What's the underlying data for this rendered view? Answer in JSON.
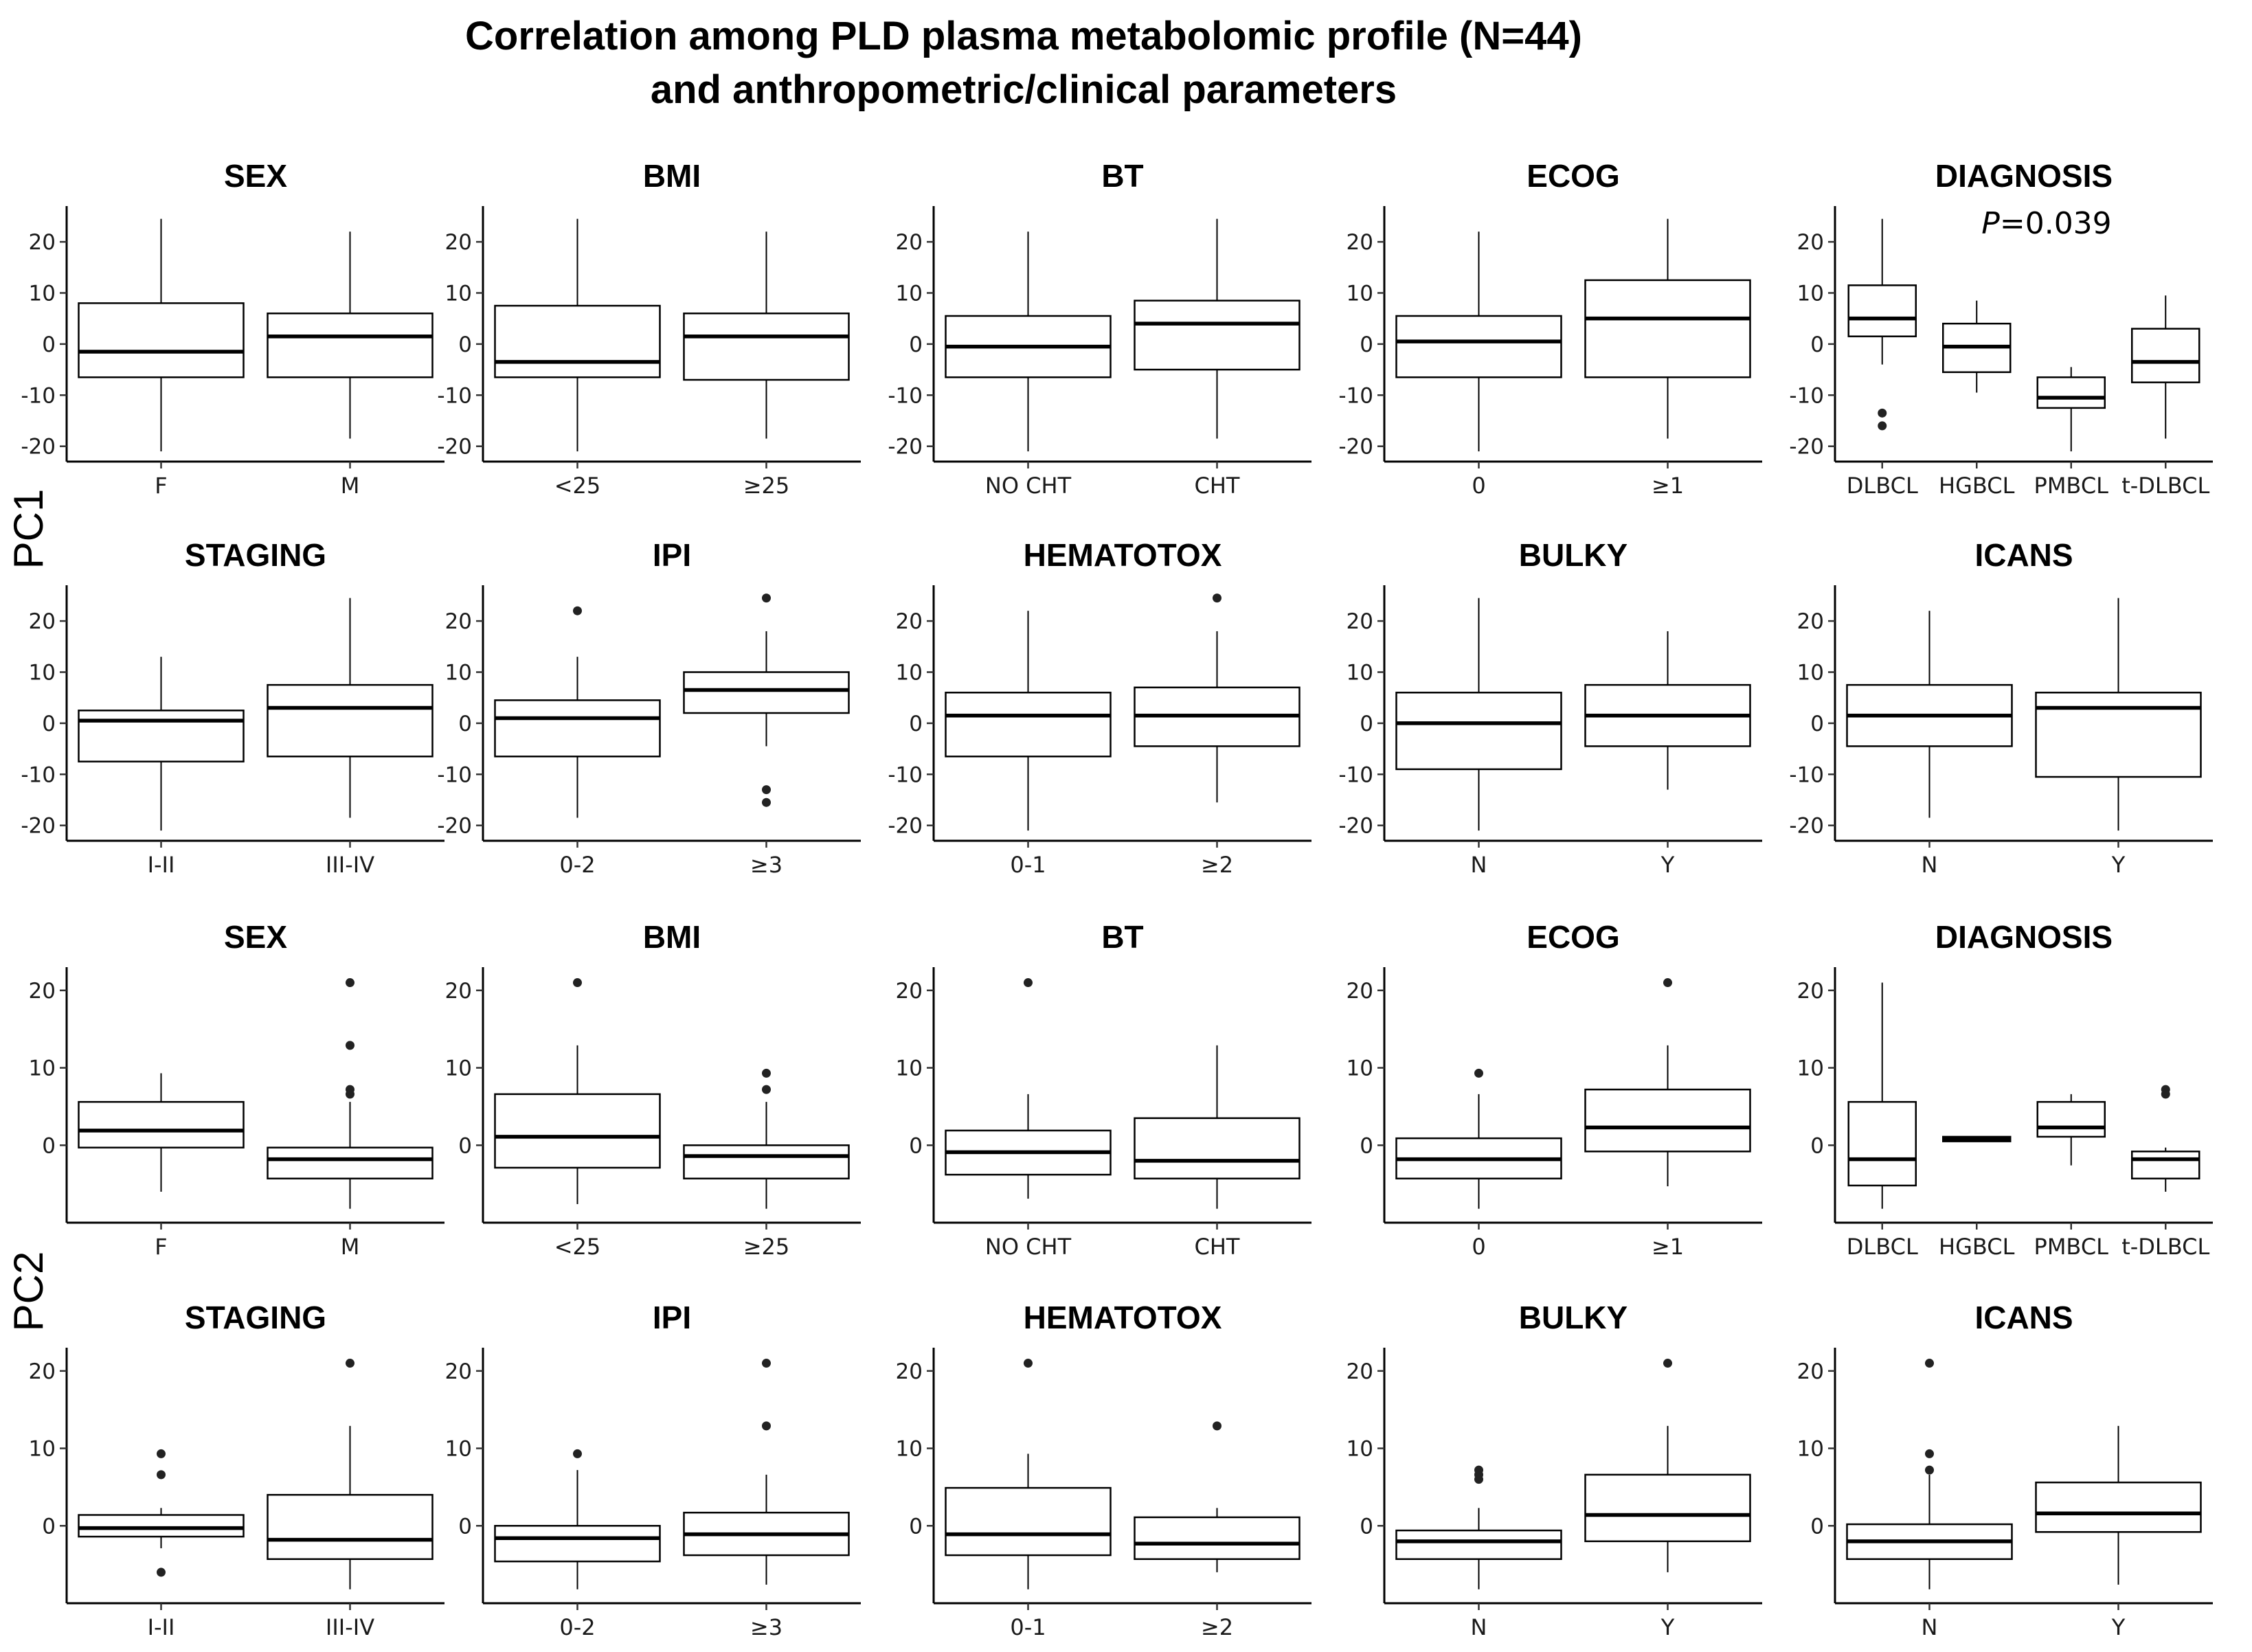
{
  "figure_title": {
    "line1": "Correlation among PLD plasma metabolomic profile (N=44)",
    "line2": "and anthropometric/clinical parameters"
  },
  "row_labels": [
    "PC1",
    "PC2"
  ],
  "chart_data": {
    "type": "boxplot",
    "title": "Correlation among PLD plasma metabolomic profile (N=44) and anthropometric/clinical parameters",
    "ylabels": [
      "PC1",
      "PC2"
    ],
    "ylim": {
      "PC1": [
        -23,
        27
      ],
      "PC2": [
        -10,
        23
      ]
    },
    "yticks": {
      "PC1": [
        -20,
        -10,
        0,
        10,
        20
      ],
      "PC2": [
        0,
        10,
        20
      ]
    },
    "panels": [
      {
        "id": "pc1-sex",
        "pc": "PC1",
        "title": "SEX",
        "categories": [
          "F",
          "M"
        ],
        "boxes": [
          {
            "q1": -6.5,
            "median": -1.5,
            "q3": 8,
            "whisker_low": -21,
            "whisker_high": 24.5,
            "outliers": []
          },
          {
            "q1": -6.5,
            "median": 1.5,
            "q3": 6,
            "whisker_low": -18.5,
            "whisker_high": 22,
            "outliers": []
          }
        ]
      },
      {
        "id": "pc1-bmi",
        "pc": "PC1",
        "title": "BMI",
        "categories": [
          "<25",
          "≥25"
        ],
        "boxes": [
          {
            "q1": -6.5,
            "median": -3.5,
            "q3": 7.5,
            "whisker_low": -21,
            "whisker_high": 24.5,
            "outliers": []
          },
          {
            "q1": -7,
            "median": 1.5,
            "q3": 6,
            "whisker_low": -18.5,
            "whisker_high": 22,
            "outliers": []
          }
        ]
      },
      {
        "id": "pc1-bt",
        "pc": "PC1",
        "title": "BT",
        "categories": [
          "NO CHT",
          "CHT"
        ],
        "boxes": [
          {
            "q1": -6.5,
            "median": -0.5,
            "q3": 5.5,
            "whisker_low": -21,
            "whisker_high": 22,
            "outliers": []
          },
          {
            "q1": -5,
            "median": 4,
            "q3": 8.5,
            "whisker_low": -18.5,
            "whisker_high": 24.5,
            "outliers": []
          }
        ]
      },
      {
        "id": "pc1-ecog",
        "pc": "PC1",
        "title": "ECOG",
        "categories": [
          "0",
          "≥1"
        ],
        "boxes": [
          {
            "q1": -6.5,
            "median": 0.5,
            "q3": 5.5,
            "whisker_low": -21,
            "whisker_high": 22,
            "outliers": []
          },
          {
            "q1": -6.5,
            "median": 5,
            "q3": 12.5,
            "whisker_low": -18.5,
            "whisker_high": 24.5,
            "outliers": []
          }
        ]
      },
      {
        "id": "pc1-diagnosis",
        "pc": "PC1",
        "title": "DIAGNOSIS",
        "annotation": "P=0.039",
        "categories": [
          "DLBCL",
          "HGBCL",
          "PMBCL",
          "t-DLBCL"
        ],
        "boxes": [
          {
            "q1": 1.5,
            "median": 5,
            "q3": 11.5,
            "whisker_low": -4,
            "whisker_high": 24.5,
            "outliers": [
              -13.5,
              -16
            ]
          },
          {
            "q1": -5.5,
            "median": -0.5,
            "q3": 4,
            "whisker_low": -9.5,
            "whisker_high": 8.5,
            "outliers": []
          },
          {
            "q1": -12.5,
            "median": -10.5,
            "q3": -6.5,
            "whisker_low": -21,
            "whisker_high": -4.5,
            "outliers": []
          },
          {
            "q1": -7.5,
            "median": -3.5,
            "q3": 3,
            "whisker_low": -18.5,
            "whisker_high": 9.5,
            "outliers": []
          }
        ]
      },
      {
        "id": "pc1-staging",
        "pc": "PC1",
        "title": "STAGING",
        "categories": [
          "I-II",
          "III-IV"
        ],
        "boxes": [
          {
            "q1": -7.5,
            "median": 0.5,
            "q3": 2.5,
            "whisker_low": -21,
            "whisker_high": 13,
            "outliers": []
          },
          {
            "q1": -6.5,
            "median": 3,
            "q3": 7.5,
            "whisker_low": -18.5,
            "whisker_high": 24.5,
            "outliers": []
          }
        ]
      },
      {
        "id": "pc1-ipi",
        "pc": "PC1",
        "title": "IPI",
        "categories": [
          "0-2",
          "≥3"
        ],
        "boxes": [
          {
            "q1": -6.5,
            "median": 1,
            "q3": 4.5,
            "whisker_low": -18.5,
            "whisker_high": 13,
            "outliers": [
              22
            ]
          },
          {
            "q1": 2,
            "median": 6.5,
            "q3": 10,
            "whisker_low": -4.5,
            "whisker_high": 18,
            "outliers": [
              24.5,
              -13,
              -15.5
            ]
          }
        ]
      },
      {
        "id": "pc1-hematotox",
        "pc": "PC1",
        "title": "HEMATOTOX",
        "categories": [
          "0-1",
          "≥2"
        ],
        "boxes": [
          {
            "q1": -6.5,
            "median": 1.5,
            "q3": 6,
            "whisker_low": -21,
            "whisker_high": 22,
            "outliers": []
          },
          {
            "q1": -4.5,
            "median": 1.5,
            "q3": 7,
            "whisker_low": -15.5,
            "whisker_high": 18,
            "outliers": [
              24.5
            ]
          }
        ]
      },
      {
        "id": "pc1-bulky",
        "pc": "PC1",
        "title": "BULKY",
        "categories": [
          "N",
          "Y"
        ],
        "boxes": [
          {
            "q1": -9,
            "median": 0,
            "q3": 6,
            "whisker_low": -21,
            "whisker_high": 24.5,
            "outliers": []
          },
          {
            "q1": -4.5,
            "median": 1.5,
            "q3": 7.5,
            "whisker_low": -13,
            "whisker_high": 18,
            "outliers": []
          }
        ]
      },
      {
        "id": "pc1-icans",
        "pc": "PC1",
        "title": "ICANS",
        "categories": [
          "N",
          "Y"
        ],
        "boxes": [
          {
            "q1": -4.5,
            "median": 1.5,
            "q3": 7.5,
            "whisker_low": -18.5,
            "whisker_high": 22,
            "outliers": []
          },
          {
            "q1": -10.5,
            "median": 3,
            "q3": 6,
            "whisker_low": -21,
            "whisker_high": 24.5,
            "outliers": []
          }
        ]
      },
      {
        "id": "pc2-sex",
        "pc": "PC2",
        "title": "SEX",
        "categories": [
          "F",
          "M"
        ],
        "boxes": [
          {
            "q1": -0.3,
            "median": 1.9,
            "q3": 5.6,
            "whisker_low": -6,
            "whisker_high": 9.3,
            "outliers": []
          },
          {
            "q1": -4.3,
            "median": -1.8,
            "q3": -0.3,
            "whisker_low": -8.2,
            "whisker_high": 5.6,
            "outliers": [
              21,
              12.9,
              7.2,
              6.6
            ]
          }
        ]
      },
      {
        "id": "pc2-bmi",
        "pc": "PC2",
        "title": "BMI",
        "categories": [
          "<25",
          "≥25"
        ],
        "boxes": [
          {
            "q1": -2.9,
            "median": 1.1,
            "q3": 6.6,
            "whisker_low": -7.6,
            "whisker_high": 12.9,
            "outliers": [
              21
            ]
          },
          {
            "q1": -4.3,
            "median": -1.4,
            "q3": 0,
            "whisker_low": -8.2,
            "whisker_high": 5.6,
            "outliers": [
              9.3,
              7.2
            ]
          }
        ]
      },
      {
        "id": "pc2-bt",
        "pc": "PC2",
        "title": "BT",
        "categories": [
          "NO CHT",
          "CHT"
        ],
        "boxes": [
          {
            "q1": -3.8,
            "median": -0.9,
            "q3": 1.9,
            "whisker_low": -6.9,
            "whisker_high": 6.6,
            "outliers": [
              21
            ]
          },
          {
            "q1": -4.3,
            "median": -2,
            "q3": 3.5,
            "whisker_low": -8.2,
            "whisker_high": 12.9,
            "outliers": []
          }
        ]
      },
      {
        "id": "pc2-ecog",
        "pc": "PC2",
        "title": "ECOG",
        "categories": [
          "0",
          "≥1"
        ],
        "boxes": [
          {
            "q1": -4.3,
            "median": -1.8,
            "q3": 0.9,
            "whisker_low": -8.2,
            "whisker_high": 6.6,
            "outliers": [
              9.3
            ]
          },
          {
            "q1": -0.8,
            "median": 2.3,
            "q3": 7.2,
            "whisker_low": -5.3,
            "whisker_high": 12.9,
            "outliers": [
              21
            ]
          }
        ]
      },
      {
        "id": "pc2-diagnosis",
        "pc": "PC2",
        "title": "DIAGNOSIS",
        "categories": [
          "DLBCL",
          "HGBCL",
          "PMBCL",
          "t-DLBCL"
        ],
        "boxes": [
          {
            "q1": -5.2,
            "median": -1.8,
            "q3": 5.6,
            "whisker_low": -8.2,
            "whisker_high": 21,
            "outliers": []
          },
          {
            "q1": 0.5,
            "median": 0.8,
            "q3": 1.1,
            "whisker_low": 0.5,
            "whisker_high": 1.1,
            "outliers": []
          },
          {
            "q1": 1.1,
            "median": 2.3,
            "q3": 5.6,
            "whisker_low": -2.6,
            "whisker_high": 6.6,
            "outliers": []
          },
          {
            "q1": -4.3,
            "median": -1.8,
            "q3": -0.8,
            "whisker_low": -6,
            "whisker_high": -0.3,
            "outliers": [
              7.2,
              6.6
            ]
          }
        ]
      },
      {
        "id": "pc2-staging",
        "pc": "PC2",
        "title": "STAGING",
        "categories": [
          "I-II",
          "III-IV"
        ],
        "boxes": [
          {
            "q1": -1.4,
            "median": -0.3,
            "q3": 1.4,
            "whisker_low": -2.9,
            "whisker_high": 2.3,
            "outliers": [
              9.3,
              6.6,
              -6
            ]
          },
          {
            "q1": -4.3,
            "median": -1.8,
            "q3": 4,
            "whisker_low": -8.2,
            "whisker_high": 12.9,
            "outliers": [
              21
            ]
          }
        ]
      },
      {
        "id": "pc2-ipi",
        "pc": "PC2",
        "title": "IPI",
        "categories": [
          "0-2",
          "≥3"
        ],
        "boxes": [
          {
            "q1": -4.6,
            "median": -1.6,
            "q3": 0,
            "whisker_low": -8.2,
            "whisker_high": 7.2,
            "outliers": [
              9.3
            ]
          },
          {
            "q1": -3.8,
            "median": -1.1,
            "q3": 1.7,
            "whisker_low": -7.6,
            "whisker_high": 6.6,
            "outliers": [
              21,
              12.9
            ]
          }
        ]
      },
      {
        "id": "pc2-hematotox",
        "pc": "PC2",
        "title": "HEMATOTOX",
        "categories": [
          "0-1",
          "≥2"
        ],
        "boxes": [
          {
            "q1": -3.8,
            "median": -1.1,
            "q3": 4.9,
            "whisker_low": -8.2,
            "whisker_high": 9.3,
            "outliers": [
              21
            ]
          },
          {
            "q1": -4.3,
            "median": -2.3,
            "q3": 1.1,
            "whisker_low": -6,
            "whisker_high": 2.3,
            "outliers": [
              12.9
            ]
          }
        ]
      },
      {
        "id": "pc2-bulky",
        "pc": "PC2",
        "title": "BULKY",
        "categories": [
          "N",
          "Y"
        ],
        "boxes": [
          {
            "q1": -4.3,
            "median": -2,
            "q3": -0.6,
            "whisker_low": -8.2,
            "whisker_high": 2.3,
            "outliers": [
              7.2,
              6.6,
              6
            ]
          },
          {
            "q1": -2,
            "median": 1.4,
            "q3": 6.6,
            "whisker_low": -6,
            "whisker_high": 12.9,
            "outliers": [
              21
            ]
          }
        ]
      },
      {
        "id": "pc2-icans",
        "pc": "PC2",
        "title": "ICANS",
        "categories": [
          "N",
          "Y"
        ],
        "boxes": [
          {
            "q1": -4.3,
            "median": -2,
            "q3": 0.2,
            "whisker_low": -8.2,
            "whisker_high": 6.6,
            "outliers": [
              21,
              9.3,
              7.2
            ]
          },
          {
            "q1": -0.8,
            "median": 1.6,
            "q3": 5.6,
            "whisker_low": -7.6,
            "whisker_high": 12.9,
            "outliers": []
          }
        ]
      }
    ]
  }
}
